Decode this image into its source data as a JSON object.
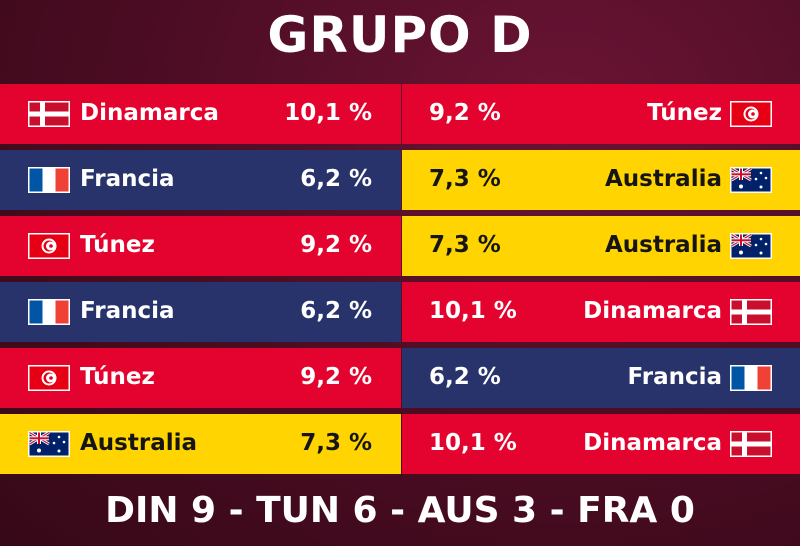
{
  "title": "GRUPO D",
  "rows": [
    {
      "left_team": "Dinamarca",
      "left_pct": "10,1 %",
      "right_pct": "9,2 %",
      "right_team": "Túnez"
    },
    {
      "left_team": "Francia",
      "left_pct": "6,2 %",
      "right_pct": "7,3 %",
      "right_team": "Australia"
    },
    {
      "left_team": "Túnez",
      "left_pct": "9,2 %",
      "right_pct": "7,3 %",
      "right_team": "Australia"
    },
    {
      "left_team": "Francia",
      "left_pct": "6,2 %",
      "right_pct": "10,1 %",
      "right_team": "Dinamarca"
    },
    {
      "left_team": "Túnez",
      "left_pct": "9,2 %",
      "right_pct": "6,2 %",
      "right_team": "Francia"
    },
    {
      "left_team": "Australia",
      "left_pct": "7,3 %",
      "right_pct": "10,1 %",
      "right_team": "Dinamarca"
    }
  ],
  "footer": "DIN 9 - TUN 6 - AUS 3 - FRA 0"
}
